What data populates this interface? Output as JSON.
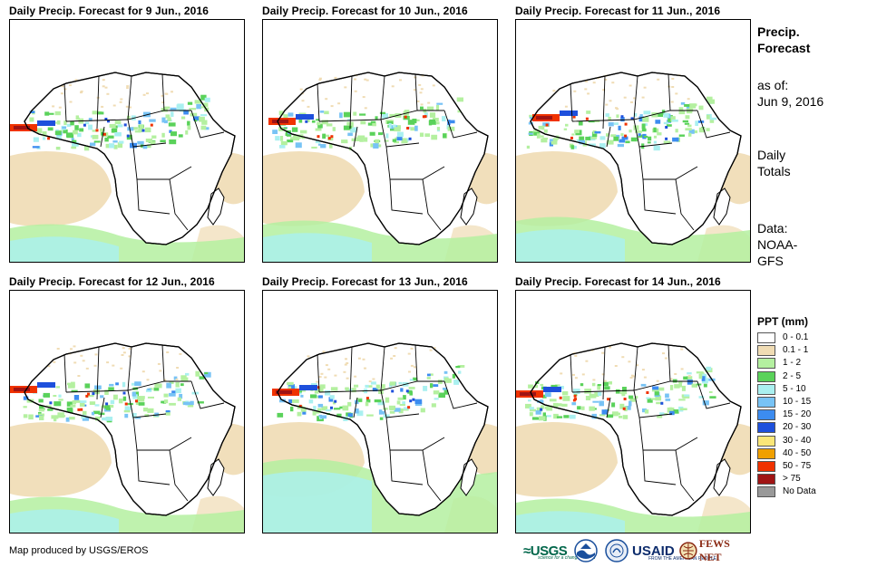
{
  "panels": [
    {
      "title": "Daily Precip. Forecast for 9 Jun., 2016"
    },
    {
      "title": "Daily Precip. Forecast for 10 Jun., 2016"
    },
    {
      "title": "Daily Precip. Forecast for 11 Jun., 2016"
    },
    {
      "title": "Daily Precip. Forecast for 12 Jun., 2016"
    },
    {
      "title": "Daily Precip. Forecast for 13 Jun., 2016"
    },
    {
      "title": "Daily Precip. Forecast for 14 Jun., 2016"
    }
  ],
  "side": {
    "title_line1": "Precip.",
    "title_line2": "Forecast",
    "asof_label": "as of:",
    "asof_date": "Jun 9, 2016",
    "daily_line1": "Daily",
    "daily_line2": "Totals",
    "data_line1": "Data:",
    "data_line2": "NOAA-",
    "data_line3": "GFS"
  },
  "legend": {
    "title": "PPT (mm)",
    "items": [
      {
        "label": "0 - 0.1",
        "color": "#ffffff"
      },
      {
        "label": "0.1 - 1",
        "color": "#f0dcb4"
      },
      {
        "label": "1 - 2",
        "color": "#b4f0a0"
      },
      {
        "label": "2 - 5",
        "color": "#5ad25a"
      },
      {
        "label": "5 - 10",
        "color": "#aaf0f0"
      },
      {
        "label": "10 - 15",
        "color": "#78c3f5"
      },
      {
        "label": "15 - 20",
        "color": "#3c8cf0"
      },
      {
        "label": "20 - 30",
        "color": "#1e50dc"
      },
      {
        "label": "30 - 40",
        "color": "#fae678"
      },
      {
        "label": "40 - 50",
        "color": "#f0a000"
      },
      {
        "label": "50 - 75",
        "color": "#f03200"
      },
      {
        "label": "> 75",
        "color": "#a01414"
      },
      {
        "label": "No Data",
        "color": "#999999"
      }
    ]
  },
  "footer": {
    "credit": "Map produced by USGS/EROS",
    "logo_usgs": "≈USGS",
    "logo_usgs_tag": "science for a changing world",
    "logo_usaid": "USAID",
    "logo_usaid_tag": "FROM THE AMERICAN PEOPLE",
    "logo_fews": "FEWS NET"
  }
}
